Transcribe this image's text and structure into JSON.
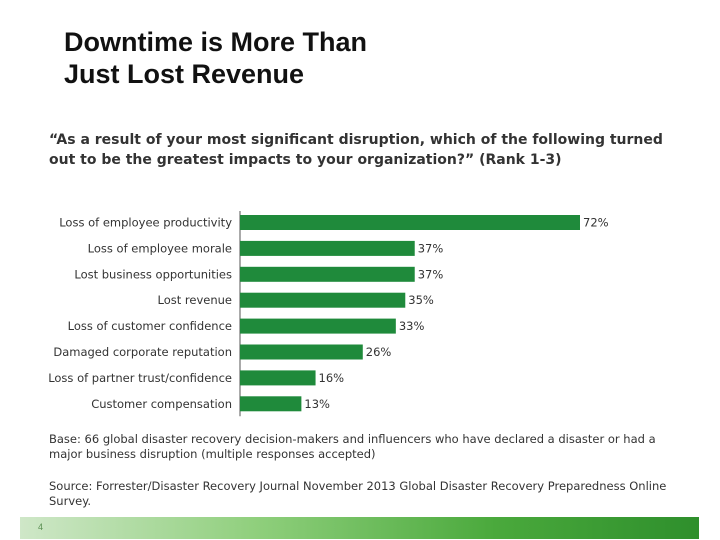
{
  "slide": {
    "title_line1": "Downtime is More Than",
    "title_line2": "Just Lost Revenue",
    "page_number": "4"
  },
  "chart_data": {
    "type": "bar",
    "orientation": "horizontal",
    "title": "“As a result of your most significant disruption, which of the following turned out to be the greatest impacts to your organization?” (Rank 1-3)",
    "categories": [
      "Loss of employee productivity",
      "Loss of employee morale",
      "Lost business opportunities",
      "Lost revenue",
      "Loss of customer confidence",
      "Damaged corporate reputation",
      "Loss of partner trust/confidence",
      "Customer compensation"
    ],
    "values": [
      72,
      37,
      37,
      35,
      33,
      26,
      16,
      13
    ],
    "value_labels": [
      "72%",
      "37%",
      "37%",
      "35%",
      "33%",
      "26%",
      "16%",
      "13%"
    ],
    "bar_color": "#1f8a3b",
    "xlim": [
      0,
      100
    ],
    "grid": false,
    "legend": "none"
  },
  "notes": {
    "base": "Base: 66 global disaster recovery decision-makers and influencers who have declared a disaster or had a major business disruption (multiple responses accepted)",
    "source": "Source: Forrester/Disaster Recovery Journal November 2013 Global Disaster Recovery Preparedness Online Survey."
  }
}
